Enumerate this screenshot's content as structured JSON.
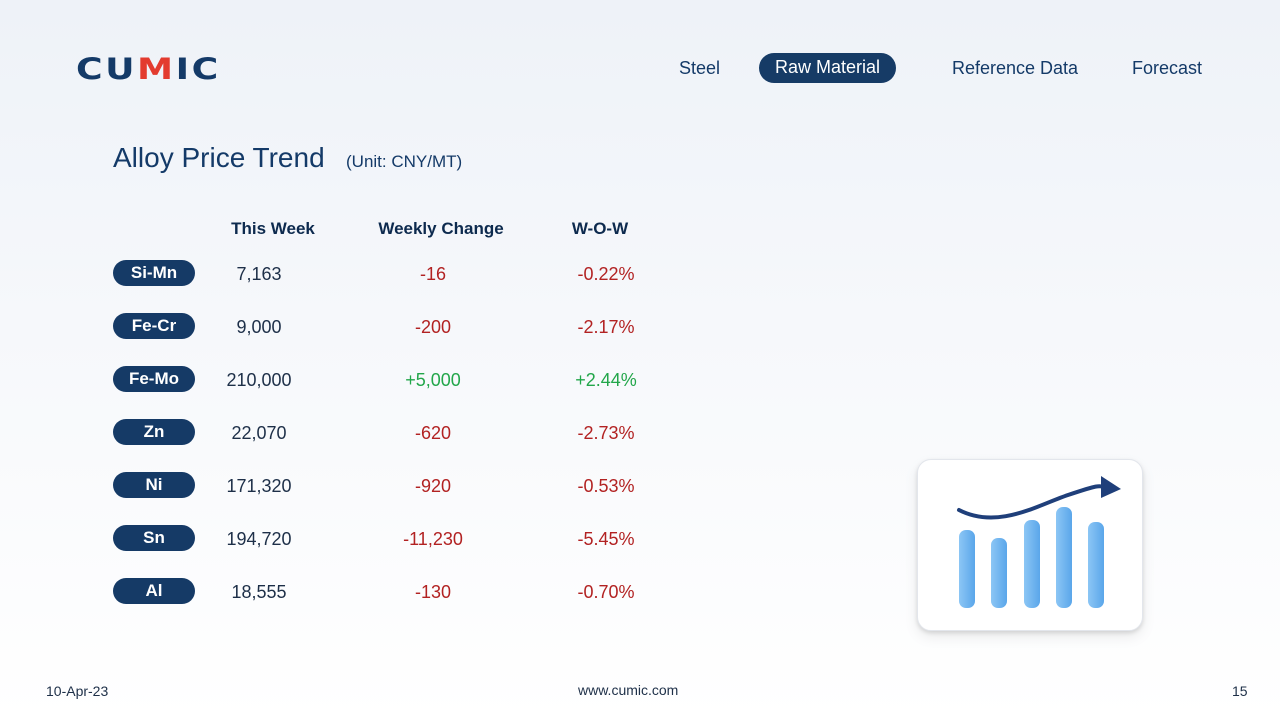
{
  "brand": {
    "logo_before": "CU",
    "logo_accent": "M",
    "logo_after": "IC"
  },
  "nav": {
    "items": [
      {
        "label": "Steel"
      },
      {
        "label": "Raw Material",
        "active": true
      },
      {
        "label": "Reference Data"
      },
      {
        "label": "Forecast"
      }
    ]
  },
  "page": {
    "title": "Alloy Price Trend",
    "unit": "(Unit: CNY/MT)"
  },
  "table": {
    "headers": [
      "This Week",
      "Weekly Change",
      "W-O-W"
    ],
    "rows": [
      {
        "name": "Si-Mn",
        "this_week": "7,163",
        "change": "-16",
        "wow": "-0.22%",
        "trend": "down"
      },
      {
        "name": "Fe-Cr",
        "this_week": "9,000",
        "change": "-200",
        "wow": "-2.17%",
        "trend": "down"
      },
      {
        "name": "Fe-Mo",
        "this_week": "210,000",
        "change": "+5,000",
        "wow": "+2.44%",
        "trend": "up"
      },
      {
        "name": "Zn",
        "this_week": "22,070",
        "change": "-620",
        "wow": "-2.73%",
        "trend": "down"
      },
      {
        "name": "Ni",
        "this_week": "171,320",
        "change": "-920",
        "wow": "-0.53%",
        "trend": "down"
      },
      {
        "name": "Sn",
        "this_week": "194,720",
        "change": "-11,230",
        "wow": "-5.45%",
        "trend": "down"
      },
      {
        "name": "Al",
        "this_week": "18,555",
        "change": "-130",
        "wow": "-0.70%",
        "trend": "down"
      }
    ]
  },
  "illustration": {
    "icon": "bar-chart-trend-icon",
    "bar_color": "#6fb3ef",
    "arrow_color": "#1f3f7a"
  },
  "colors": {
    "brand_navy": "#153a66",
    "logo_accent": "#e33b2f",
    "negative": "#b22222",
    "positive": "#22a64a"
  },
  "footer": {
    "date": "10-Apr-23",
    "url": "www.cumic.com",
    "page_number": "15"
  }
}
